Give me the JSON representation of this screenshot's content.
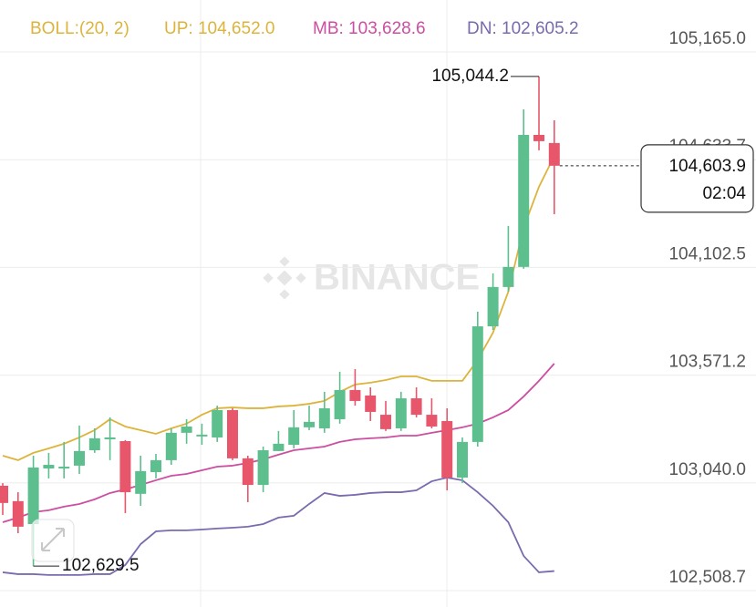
{
  "chart_data": {
    "type": "candlestick",
    "indicator_label": "BOLL:(20, 2)",
    "watermark": "BINANCE",
    "up_color": "#5dbf8e",
    "down_color": "#e8566b",
    "ylim": [
      102428.0,
      105421.2
    ],
    "yticks": [
      {
        "value": 105165.0,
        "label": "105,165.0"
      },
      {
        "value": 104633.7,
        "label": "104,633.7"
      },
      {
        "value": 104102.5,
        "label": "104,102.5"
      },
      {
        "value": 103571.2,
        "label": "103,571.2"
      },
      {
        "value": 103040.0,
        "label": "103,040.0"
      },
      {
        "value": 102508.7,
        "label": "102,508.7"
      }
    ],
    "grid": true,
    "candles": {
      "open": [
        103026,
        102950,
        102837,
        103111,
        103111,
        103125,
        103201,
        103255,
        103246,
        102986,
        103093,
        103152,
        103287,
        103269,
        103264,
        103399,
        103161,
        103030,
        103197,
        103228,
        103314,
        103309,
        103354,
        103498,
        103471,
        103376,
        103309,
        103457,
        103376,
        103345,
        103066,
        103242,
        103812,
        104006,
        104105,
        104756,
        104716
      ],
      "high": [
        103039,
        102994,
        103174,
        103188,
        103242,
        103323,
        103309,
        103363,
        103251,
        103174,
        103183,
        103309,
        103354,
        103332,
        103421,
        103408,
        103174,
        103219,
        103296,
        103399,
        103421,
        103489,
        103588,
        103601,
        103511,
        103444,
        103489,
        103511,
        103457,
        103408,
        103264,
        103884,
        104073,
        104307,
        104882,
        105044.2,
        104828
      ],
      "low": [
        102882,
        102792,
        102629.5,
        103062,
        103062,
        103084,
        103188,
        103152,
        102891,
        102927,
        103062,
        103129,
        103233,
        103228,
        103242,
        103152,
        102945,
        102994,
        103197,
        103210,
        103300,
        103287,
        103332,
        103421,
        103345,
        103296,
        103296,
        103363,
        103309,
        103003,
        103039,
        103219,
        103794,
        103983,
        104096,
        104680,
        104365
      ],
      "close": [
        102941,
        102824,
        103116,
        103129,
        103120,
        103197,
        103260,
        103264,
        102994,
        103098,
        103152,
        103287,
        103318,
        103278,
        103399,
        103161,
        103030,
        103201,
        103233,
        103314,
        103341,
        103408,
        103498,
        103444,
        103390,
        103305,
        103457,
        103376,
        103318,
        103066,
        103242,
        103812,
        104006,
        104105,
        104756,
        104725,
        104603.9
      ],
      "high_labels": [
        null,
        null,
        null,
        null,
        null,
        null,
        null,
        null,
        null,
        null,
        null,
        null,
        null,
        null,
        null,
        null,
        null,
        null,
        null,
        null,
        null,
        null,
        null,
        null,
        null,
        null,
        null,
        null,
        null,
        null,
        null,
        null,
        null,
        null,
        null,
        "105,044.2",
        null
      ],
      "low_labels": [
        null,
        null,
        "102,629.5",
        null,
        null,
        null,
        null,
        null,
        null,
        null,
        null,
        null,
        null,
        null,
        null,
        null,
        null,
        null,
        null,
        null,
        null,
        null,
        null,
        null,
        null,
        null,
        null,
        null,
        null,
        null,
        null,
        null,
        null,
        null,
        null,
        null,
        null
      ]
    },
    "last_price": {
      "label": "104,603.9",
      "countdown": "02:04"
    },
    "series": [
      {
        "name": "UP: 104,652.0",
        "color": "#dcb43c",
        "values": [
          103174,
          103152,
          103188,
          103210,
          103233,
          103264,
          103300,
          103354,
          103318,
          103300,
          103282,
          103309,
          103332,
          103376,
          103408,
          103412,
          103408,
          103408,
          103417,
          103421,
          103430,
          103444,
          103489,
          103525,
          103534,
          103547,
          103565,
          103565,
          103543,
          103543,
          103543,
          103646,
          103781,
          103983,
          104298,
          104500,
          104652.0
        ]
      },
      {
        "name": "MB: 103,628.6",
        "color": "#cc4ea1",
        "values": [
          102846,
          102869,
          102896,
          102905,
          102923,
          102936,
          102959,
          102990,
          103008,
          103030,
          103053,
          103075,
          103084,
          103102,
          103120,
          103125,
          103138,
          103156,
          103179,
          103201,
          103210,
          103219,
          103242,
          103255,
          103260,
          103264,
          103273,
          103273,
          103287,
          103300,
          103314,
          103332,
          103363,
          103399,
          103466,
          103543,
          103628.6
        ]
      },
      {
        "name": "DN: 102,605.2",
        "color": "#7a6aae",
        "values": [
          102599,
          102590,
          102590,
          102586,
          102586,
          102586,
          102590,
          102590,
          102635,
          102738,
          102801,
          102806,
          102806,
          102810,
          102815,
          102819,
          102824,
          102837,
          102869,
          102878,
          102936,
          102990,
          102976,
          102981,
          102990,
          102994,
          102994,
          103003,
          103048,
          103066,
          103053,
          102994,
          102927,
          102846,
          102680,
          102599,
          102605.2
        ]
      }
    ]
  }
}
